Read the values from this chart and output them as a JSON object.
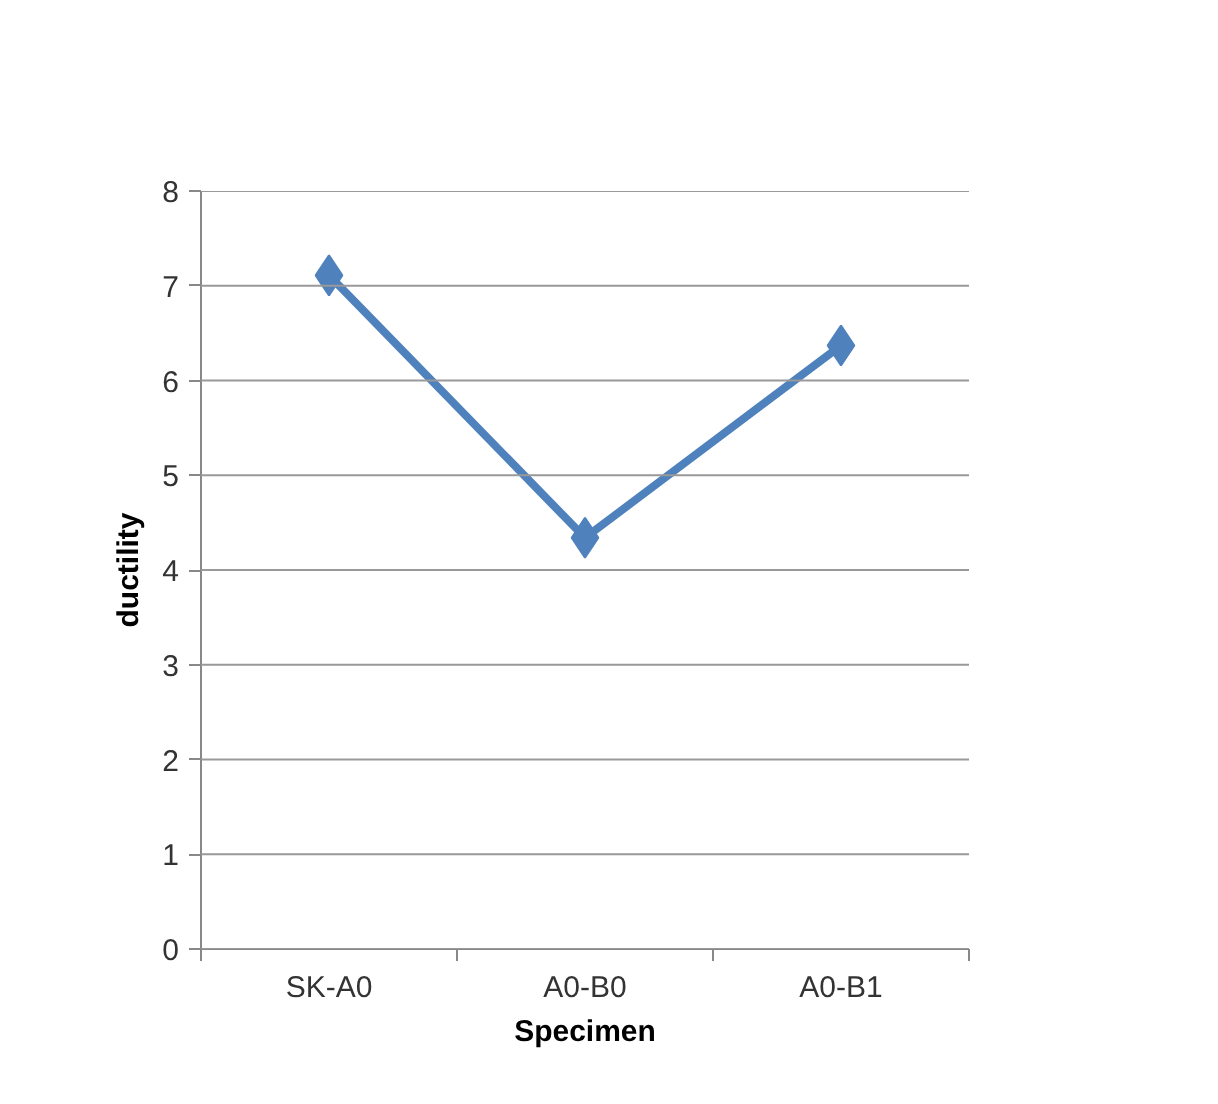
{
  "chart_data": {
    "type": "line",
    "xlabel": "Specimen",
    "ylabel": "ductility",
    "categories": [
      "SK-A0",
      "A0-B0",
      "A0-B1"
    ],
    "series": [
      {
        "color": "#4f81bd",
        "values": [
          7.11,
          4.34,
          6.37
        ]
      }
    ],
    "ylim": [
      0,
      8
    ],
    "yticks": [
      0,
      1,
      2,
      3,
      4,
      5,
      6,
      7,
      8
    ],
    "grid": "y",
    "marker": "diamond",
    "line_style": "solid"
  }
}
